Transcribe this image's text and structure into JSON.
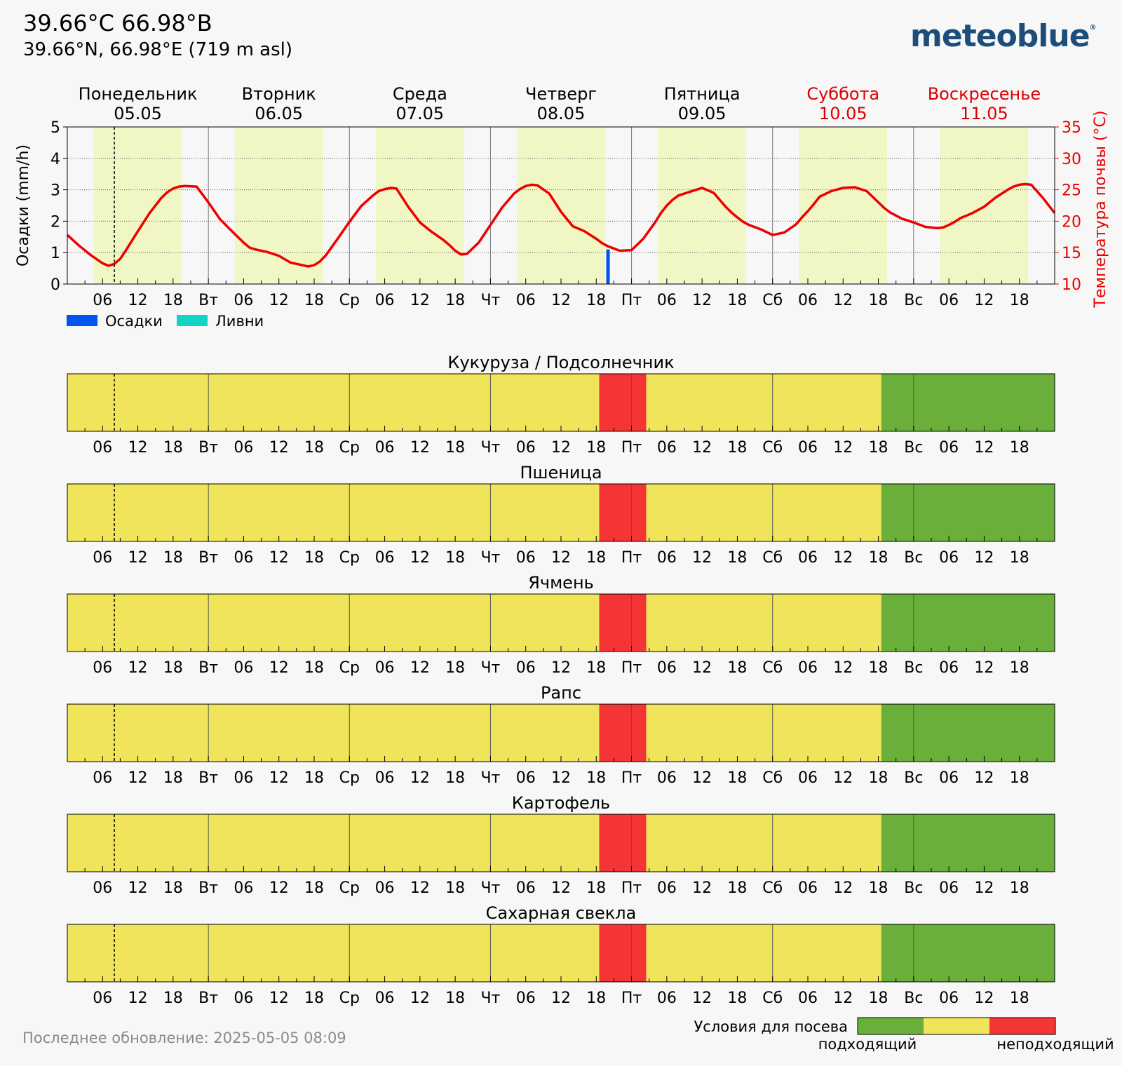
{
  "header": {
    "title": "39.66°C 66.98°B",
    "subtitle": "39.66°N, 66.98°E (719 m asl)",
    "logo": "meteoblue",
    "logo_mark": "®"
  },
  "footer": {
    "last_update": "Последнее обновление: 2025-05-05 08:09"
  },
  "colors": {
    "daylight": "#f0f7c4",
    "temperature": "#ee0000",
    "precipitation": "#0055ee",
    "showers": "#12d4c4",
    "suitable": "#6aaf3a",
    "medium": "#f0e55a",
    "unsuitable": "#f53535",
    "weekend": "#dd0000"
  },
  "days": [
    {
      "name": "Понедельник",
      "date": "05.05",
      "abbr": "",
      "weekend": false
    },
    {
      "name": "Вторник",
      "date": "06.05",
      "abbr": "Вт",
      "weekend": false
    },
    {
      "name": "Среда",
      "date": "07.05",
      "abbr": "Ср",
      "weekend": false
    },
    {
      "name": "Четверг",
      "date": "08.05",
      "abbr": "Чт",
      "weekend": false
    },
    {
      "name": "Пятница",
      "date": "09.05",
      "abbr": "Пт",
      "weekend": false
    },
    {
      "name": "Суббота",
      "date": "10.05",
      "abbr": "Сб",
      "weekend": true
    },
    {
      "name": "Воскресенье",
      "date": "11.05",
      "abbr": "Вс",
      "weekend": true
    }
  ],
  "hour_labels": [
    "06",
    "12",
    "18"
  ],
  "current_time_hour": 8,
  "daylight_hours": [
    4.5,
    19.5
  ],
  "chart_data": [
    {
      "type": "line",
      "ylabel_left": "Осадки (mm/h)",
      "ylabel_right": "Температура почвы (°C)",
      "ylim_left": [
        0,
        5
      ],
      "ylim_right": [
        10,
        35
      ],
      "yticks_left": [
        0,
        1,
        2,
        3,
        4,
        5
      ],
      "yticks_right": [
        10,
        15,
        20,
        25,
        30,
        35
      ],
      "x_unit": "hours since 05.05 00:00",
      "xlim": [
        0,
        168
      ],
      "grid": true,
      "series": [
        {
          "name": "Температура почвы (°C)",
          "axis": "right",
          "x": [
            0,
            2,
            4,
            6,
            7,
            8,
            9,
            10,
            12,
            14,
            16,
            17,
            18,
            19,
            20,
            22,
            24,
            26,
            28,
            29,
            30,
            31,
            32,
            34,
            36,
            38,
            40,
            41,
            42,
            43,
            44,
            46,
            48,
            50,
            52,
            53,
            54,
            55,
            56,
            58,
            60,
            62,
            64,
            65,
            66,
            67,
            68,
            70,
            72,
            74,
            76,
            77,
            78,
            79,
            80,
            82,
            84,
            86,
            88,
            89,
            90,
            91,
            92,
            94,
            96,
            98,
            100,
            101,
            102,
            103,
            104,
            106,
            108,
            110,
            112,
            113,
            114,
            115,
            116,
            118,
            120,
            122,
            124,
            125,
            126,
            127,
            128,
            130,
            132,
            134,
            136,
            137,
            138,
            139,
            140,
            142,
            144,
            146,
            148,
            149,
            150,
            151,
            152,
            154,
            156,
            158,
            160,
            161,
            162,
            163,
            164,
            166,
            168
          ],
          "values": [
            17.8,
            16.1,
            14.6,
            13.3,
            12.9,
            13.2,
            14.0,
            15.4,
            18.4,
            21.3,
            23.7,
            24.6,
            25.2,
            25.5,
            25.6,
            25.5,
            23.0,
            20.3,
            18.4,
            17.5,
            16.6,
            15.8,
            15.5,
            15.1,
            14.5,
            13.4,
            13.0,
            12.8,
            13.0,
            13.6,
            14.6,
            17.2,
            19.9,
            22.4,
            24.1,
            24.8,
            25.1,
            25.3,
            25.2,
            22.3,
            19.8,
            18.3,
            17.0,
            16.2,
            15.3,
            14.7,
            14.8,
            16.6,
            19.4,
            22.2,
            24.4,
            25.1,
            25.6,
            25.8,
            25.7,
            24.4,
            21.5,
            19.2,
            18.4,
            17.8,
            17.2,
            16.5,
            16.0,
            15.3,
            15.4,
            17.2,
            19.8,
            21.3,
            22.5,
            23.4,
            24.1,
            24.7,
            25.3,
            24.5,
            22.3,
            21.4,
            20.6,
            19.9,
            19.4,
            18.7,
            17.8,
            18.2,
            19.5,
            20.6,
            21.6,
            22.7,
            23.9,
            24.8,
            25.3,
            25.4,
            24.8,
            23.9,
            23.0,
            22.1,
            21.4,
            20.4,
            19.8,
            19.1,
            18.9,
            19.0,
            19.4,
            19.9,
            20.5,
            21.3,
            22.3,
            23.8,
            25.0,
            25.5,
            25.8,
            25.9,
            25.8,
            23.7,
            21.3
          ]
        },
        {
          "name": "Осадки",
          "axis": "left",
          "kind": "bar",
          "x": [
            92
          ],
          "values": [
            1.1
          ]
        },
        {
          "name": "Ливни",
          "axis": "left",
          "kind": "bar",
          "x": [],
          "values": []
        }
      ]
    },
    {
      "type": "heatmap",
      "title": "Кукуруза / Подсолнечник",
      "segments": [
        {
          "from": 0,
          "to": 90.5,
          "class": "medium"
        },
        {
          "from": 90.5,
          "to": 98.5,
          "class": "unsuitable"
        },
        {
          "from": 98.5,
          "to": 138.5,
          "class": "medium"
        },
        {
          "from": 138.5,
          "to": 168,
          "class": "suitable"
        }
      ]
    },
    {
      "type": "heatmap",
      "title": "Пшеница",
      "segments": [
        {
          "from": 0,
          "to": 90.5,
          "class": "medium"
        },
        {
          "from": 90.5,
          "to": 98.5,
          "class": "unsuitable"
        },
        {
          "from": 98.5,
          "to": 138.5,
          "class": "medium"
        },
        {
          "from": 138.5,
          "to": 168,
          "class": "suitable"
        }
      ]
    },
    {
      "type": "heatmap",
      "title": "Ячмень",
      "segments": [
        {
          "from": 0,
          "to": 90.5,
          "class": "medium"
        },
        {
          "from": 90.5,
          "to": 98.5,
          "class": "unsuitable"
        },
        {
          "from": 98.5,
          "to": 138.5,
          "class": "medium"
        },
        {
          "from": 138.5,
          "to": 168,
          "class": "suitable"
        }
      ]
    },
    {
      "type": "heatmap",
      "title": "Рапс",
      "segments": [
        {
          "from": 0,
          "to": 90.5,
          "class": "medium"
        },
        {
          "from": 90.5,
          "to": 98.5,
          "class": "unsuitable"
        },
        {
          "from": 98.5,
          "to": 138.5,
          "class": "medium"
        },
        {
          "from": 138.5,
          "to": 168,
          "class": "suitable"
        }
      ]
    },
    {
      "type": "heatmap",
      "title": "Картофель",
      "segments": [
        {
          "from": 0,
          "to": 90.5,
          "class": "medium"
        },
        {
          "from": 90.5,
          "to": 98.5,
          "class": "unsuitable"
        },
        {
          "from": 98.5,
          "to": 138.5,
          "class": "medium"
        },
        {
          "from": 138.5,
          "to": 168,
          "class": "suitable"
        }
      ]
    },
    {
      "type": "heatmap",
      "title": "Сахарная свекла",
      "segments": [
        {
          "from": 0,
          "to": 90.5,
          "class": "medium"
        },
        {
          "from": 90.5,
          "to": 98.5,
          "class": "unsuitable"
        },
        {
          "from": 98.5,
          "to": 138.5,
          "class": "medium"
        },
        {
          "from": 138.5,
          "to": 168,
          "class": "suitable"
        }
      ]
    }
  ],
  "legend": {
    "title": "Условия для посева",
    "suitable_label": "подходящий",
    "unsuitable_label": "неподходящий"
  }
}
